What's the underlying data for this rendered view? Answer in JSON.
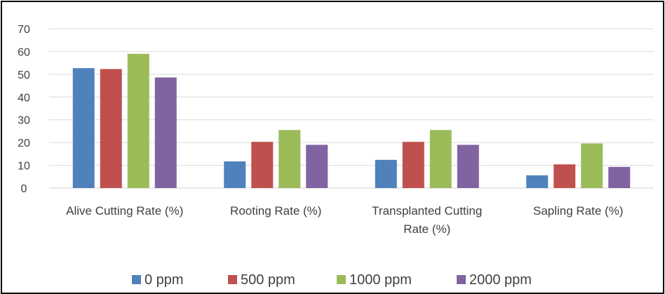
{
  "chart_data": {
    "type": "bar",
    "title": "",
    "xlabel": "",
    "ylabel": "",
    "categories": [
      [
        "Alive Cutting Rate (%)"
      ],
      [
        "Rooting Rate (%)"
      ],
      [
        "Transplanted  Cutting",
        "Rate (%)"
      ],
      [
        "Sapling Rate (%)"
      ]
    ],
    "series": [
      {
        "name": "0 ppm",
        "color": "#4F81BD",
        "values": [
          52.7,
          11.7,
          12.4,
          5.6
        ]
      },
      {
        "name": "500 ppm",
        "color": "#C0504D",
        "values": [
          52.3,
          20.3,
          20.3,
          10.4
        ]
      },
      {
        "name": "1000 ppm",
        "color": "#9BBB59",
        "values": [
          59.0,
          25.5,
          25.5,
          19.6
        ]
      },
      {
        "name": "2000 ppm",
        "color": "#8064A2",
        "values": [
          48.6,
          19.0,
          19.0,
          9.3
        ]
      }
    ],
    "ylim": [
      0,
      70
    ],
    "yticks": [
      0,
      10,
      20,
      30,
      40,
      50,
      60,
      70
    ],
    "grid": true,
    "legend_position": "bottom"
  }
}
